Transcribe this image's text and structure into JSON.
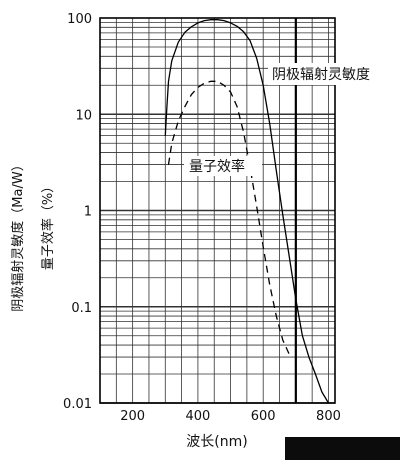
{
  "chart_data": {
    "type": "line",
    "title": "",
    "xlabel": "波长(nm)",
    "ylabel_primary": "阴极辐射灵敏度（Ma/W）",
    "ylabel_secondary": "量子效率（%）",
    "y_scale": "log",
    "xlim": [
      100,
      820
    ],
    "ylim": [
      0.01,
      100
    ],
    "x_ticks": [
      "200",
      "400",
      "600",
      "800"
    ],
    "y_ticks": [
      "100",
      "10",
      "1",
      "0.1",
      "0.01"
    ],
    "grid": true,
    "reference_line_x": 700,
    "series": [
      {
        "name": "阴极辐射灵敏度",
        "style": "solid",
        "x": [
          300,
          305,
          310,
          320,
          340,
          360,
          380,
          400,
          420,
          440,
          460,
          480,
          500,
          520,
          540,
          560,
          580,
          600,
          620,
          640,
          660,
          680,
          700,
          720,
          740,
          760,
          780,
          800
        ],
        "y": [
          6,
          12,
          22,
          36,
          56,
          71,
          81,
          89,
          94,
          96,
          96,
          94,
          89,
          82,
          72,
          58,
          38,
          20,
          8,
          2.6,
          0.9,
          0.33,
          0.12,
          0.05,
          0.03,
          0.02,
          0.013,
          0.01
        ]
      },
      {
        "name": "量子效率",
        "style": "dashed",
        "x": [
          310,
          320,
          340,
          360,
          380,
          400,
          420,
          440,
          460,
          480,
          500,
          520,
          540,
          560,
          580,
          600,
          620,
          640,
          660,
          680,
          690
        ],
        "y": [
          3,
          5,
          8.5,
          12,
          16,
          19,
          21,
          22,
          22,
          20,
          17,
          12,
          6.5,
          2.8,
          1.1,
          0.42,
          0.17,
          0.08,
          0.045,
          0.032,
          0.03
        ]
      }
    ],
    "annotations": [
      "阴极辐射灵敏度",
      "量子效率"
    ]
  }
}
